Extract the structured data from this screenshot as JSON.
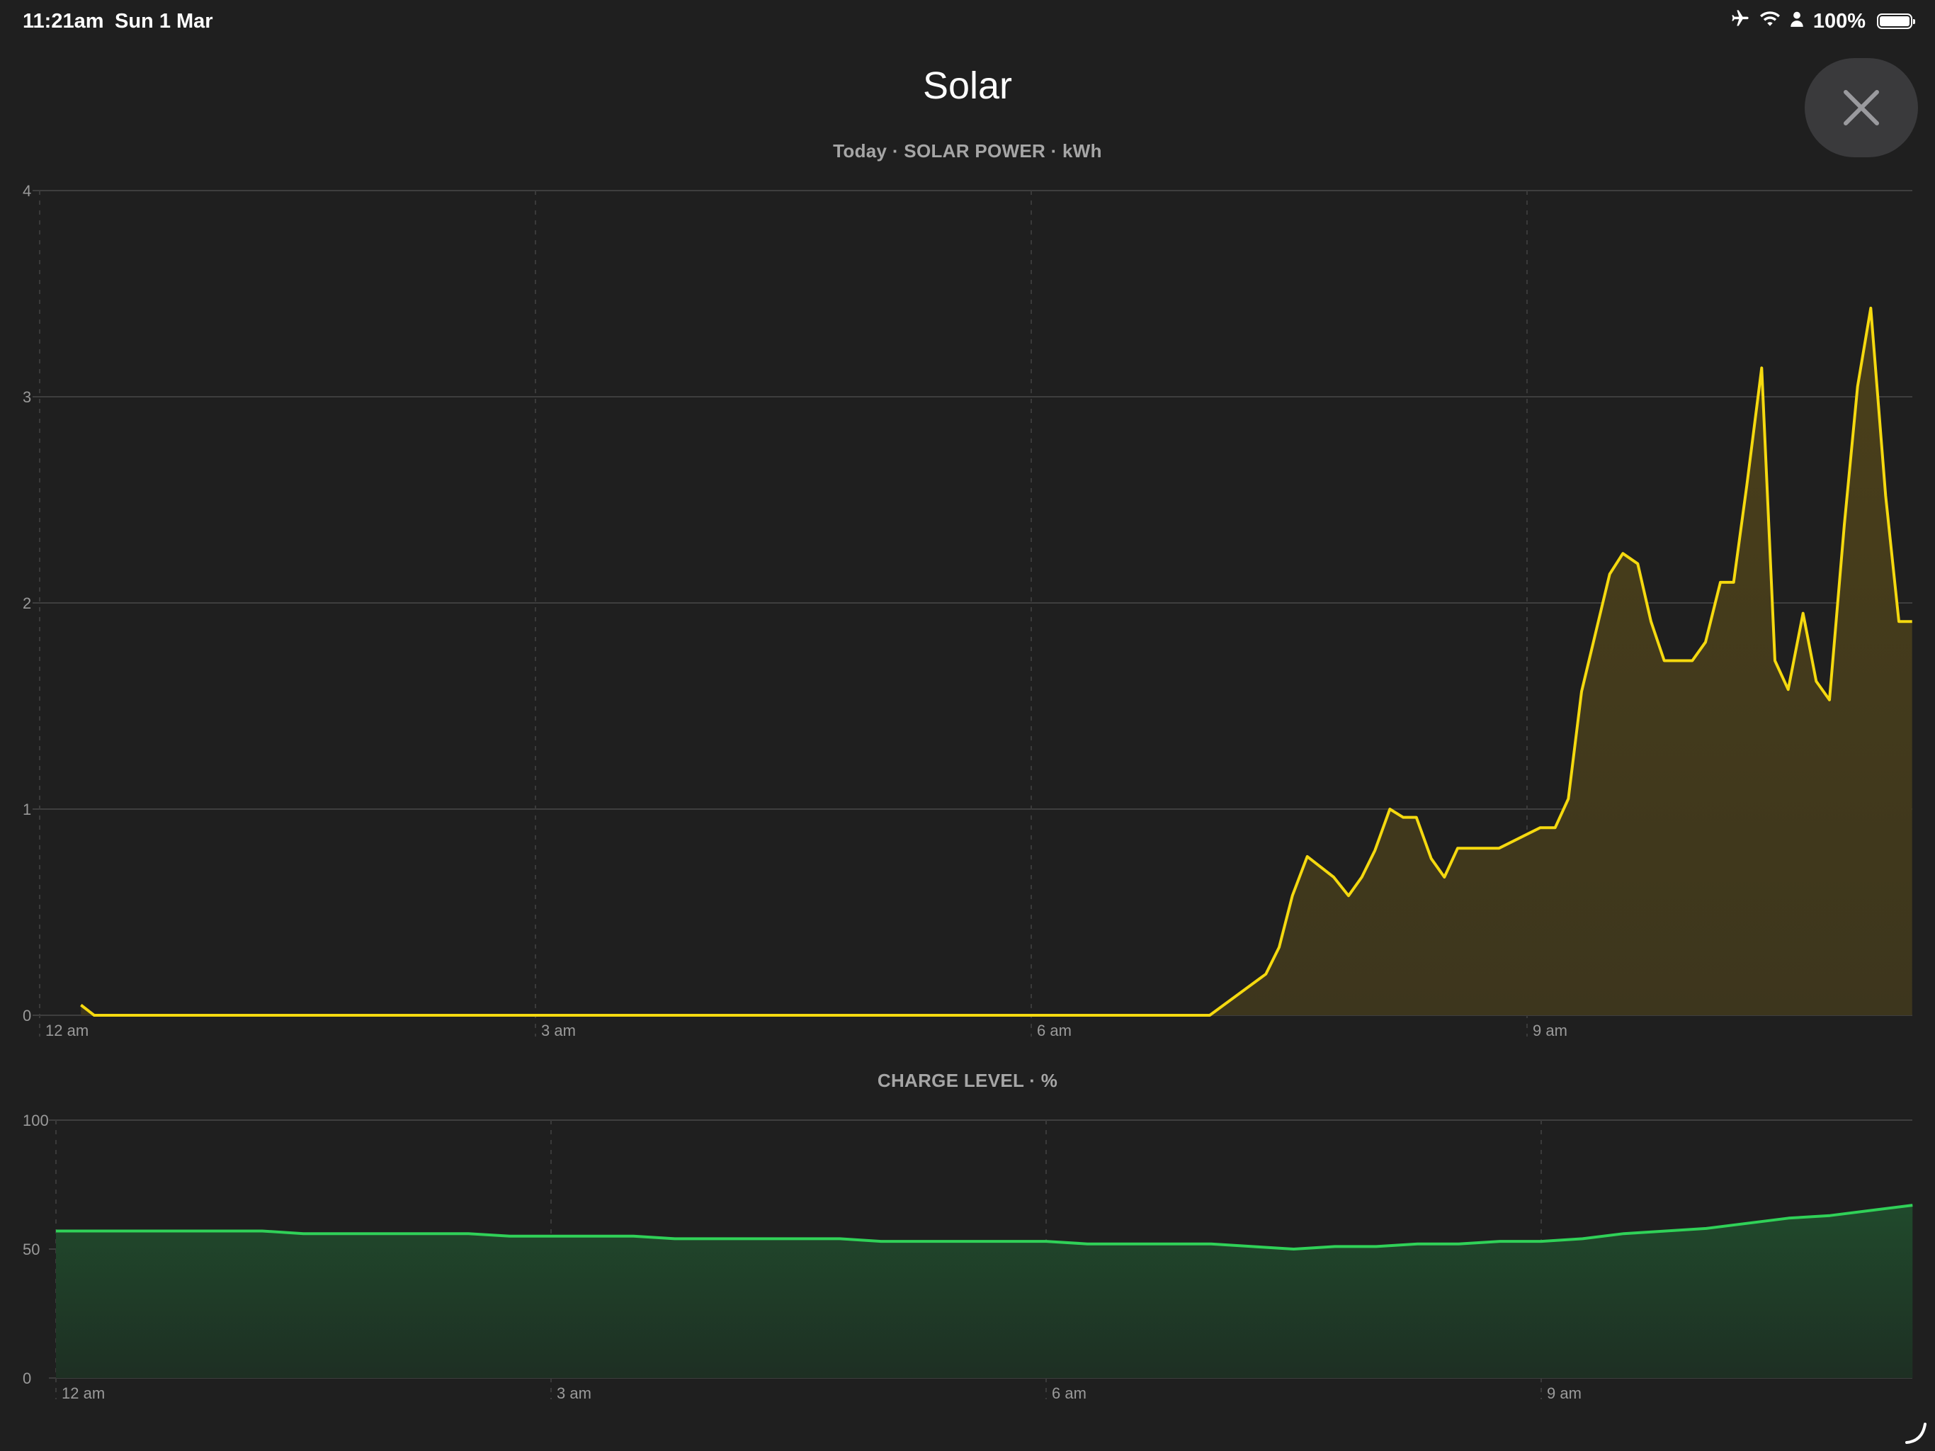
{
  "status_bar": {
    "time": "11:21am",
    "date": "Sun 1 Mar",
    "battery_text": "100%",
    "battery_level": 1.0,
    "icons": [
      "airplane-icon",
      "wifi-icon",
      "person-icon",
      "battery-icon"
    ]
  },
  "header": {
    "title": "Solar",
    "close_icon": "close-icon"
  },
  "colors": {
    "background": "#1f1f1f",
    "solar_line": "#f5d90f",
    "solar_fill": "#4a3f1a",
    "charge_line": "#30d158",
    "charge_fill": "#204a2c",
    "close_button_bg": "#3a3a3c",
    "caption": "#a6a6a6"
  },
  "chart_data": [
    {
      "id": "solar",
      "type": "area",
      "title": "Today · SOLAR POWER · kWh",
      "y_unit": "kWh",
      "ylim": [
        0,
        4
      ],
      "y_ticks": [
        "0",
        "1",
        "2",
        "3",
        "4"
      ],
      "x_range_hours": [
        0,
        11.33
      ],
      "x_ticks": [
        "12 am",
        "3 am",
        "6 am",
        "9 am"
      ],
      "x_tick_hours": [
        0,
        3,
        6,
        9
      ],
      "grid": true,
      "points": [
        [
          0.25,
          0.05
        ],
        [
          0.33,
          0.0
        ],
        [
          1.0,
          0.0
        ],
        [
          2.0,
          0.0
        ],
        [
          3.0,
          0.0
        ],
        [
          4.0,
          0.0
        ],
        [
          5.0,
          0.0
        ],
        [
          6.0,
          0.0
        ],
        [
          7.0,
          0.0
        ],
        [
          7.08,
          0.0
        ],
        [
          7.42,
          0.2
        ],
        [
          7.5,
          0.33
        ],
        [
          7.58,
          0.58
        ],
        [
          7.67,
          0.77
        ],
        [
          7.83,
          0.67
        ],
        [
          7.92,
          0.58
        ],
        [
          8.0,
          0.67
        ],
        [
          8.08,
          0.8
        ],
        [
          8.17,
          1.0
        ],
        [
          8.25,
          0.96
        ],
        [
          8.33,
          0.96
        ],
        [
          8.42,
          0.76
        ],
        [
          8.5,
          0.67
        ],
        [
          8.58,
          0.81
        ],
        [
          8.83,
          0.81
        ],
        [
          9.08,
          0.91
        ],
        [
          9.17,
          0.91
        ],
        [
          9.25,
          1.05
        ],
        [
          9.33,
          1.57
        ],
        [
          9.5,
          2.14
        ],
        [
          9.58,
          2.24
        ],
        [
          9.67,
          2.19
        ],
        [
          9.75,
          1.91
        ],
        [
          9.83,
          1.72
        ],
        [
          10.0,
          1.72
        ],
        [
          10.08,
          1.81
        ],
        [
          10.17,
          2.1
        ],
        [
          10.25,
          2.1
        ],
        [
          10.33,
          2.57
        ],
        [
          10.42,
          3.14
        ],
        [
          10.5,
          1.72
        ],
        [
          10.58,
          1.58
        ],
        [
          10.67,
          1.95
        ],
        [
          10.75,
          1.62
        ],
        [
          10.83,
          1.53
        ],
        [
          10.92,
          2.38
        ],
        [
          11.0,
          3.05
        ],
        [
          11.08,
          3.43
        ],
        [
          11.17,
          2.52
        ],
        [
          11.25,
          1.91
        ],
        [
          11.33,
          1.91
        ]
      ]
    },
    {
      "id": "charge",
      "type": "area",
      "title": "CHARGE LEVEL · %",
      "y_unit": "%",
      "ylim": [
        0,
        100
      ],
      "y_ticks": [
        "0",
        "50",
        "100"
      ],
      "x_range_hours": [
        0,
        11.25
      ],
      "x_ticks": [
        "12 am",
        "3 am",
        "6 am",
        "9 am"
      ],
      "x_tick_hours": [
        0,
        3,
        6,
        9
      ],
      "grid": true,
      "points": [
        [
          0.0,
          57
        ],
        [
          1.0,
          57
        ],
        [
          1.25,
          57
        ],
        [
          1.5,
          56
        ],
        [
          2.25,
          56
        ],
        [
          2.5,
          56
        ],
        [
          2.75,
          55
        ],
        [
          3.5,
          55
        ],
        [
          3.75,
          54
        ],
        [
          4.75,
          54
        ],
        [
          5.0,
          53
        ],
        [
          6.0,
          53
        ],
        [
          6.25,
          52
        ],
        [
          7.0,
          52
        ],
        [
          7.25,
          51
        ],
        [
          7.5,
          50
        ],
        [
          7.75,
          51
        ],
        [
          8.0,
          51
        ],
        [
          8.25,
          52
        ],
        [
          8.5,
          52
        ],
        [
          8.75,
          53
        ],
        [
          9.0,
          53
        ],
        [
          9.25,
          54
        ],
        [
          9.5,
          56
        ],
        [
          10.0,
          58
        ],
        [
          10.5,
          62
        ],
        [
          10.75,
          63
        ],
        [
          11.0,
          65
        ],
        [
          11.25,
          67
        ]
      ]
    }
  ]
}
